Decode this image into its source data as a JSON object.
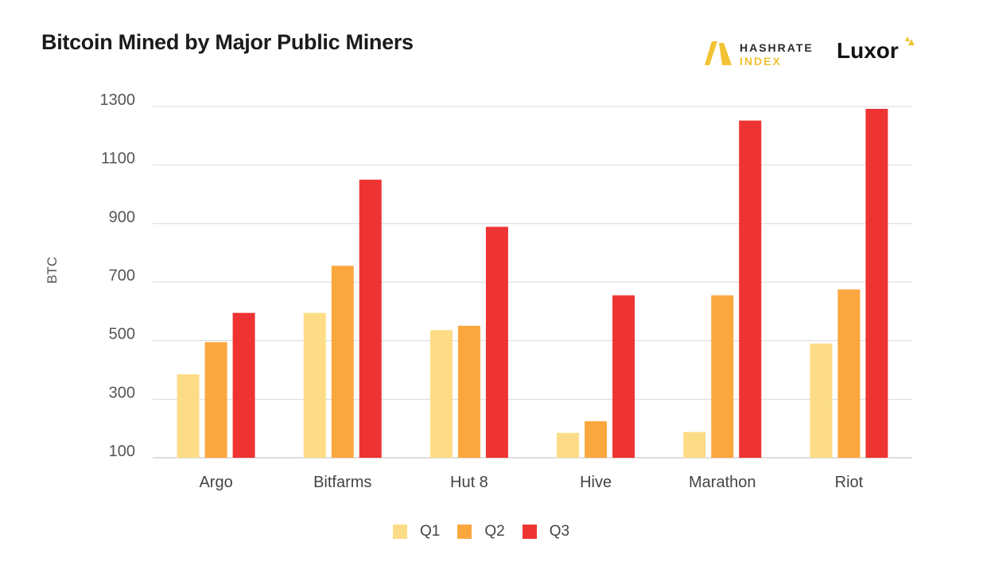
{
  "title": "Bitcoin Mined by Major Public Miners",
  "logos": {
    "hashrate_line1": "HASHRATE",
    "hashrate_line2": "INDEX",
    "luxor": "Luxor"
  },
  "colors": {
    "Q1": "#fddc87",
    "Q2": "#fba73f",
    "Q3": "#ee3433",
    "grid": "#d9d9d9",
    "hashrate_accent": "#f1c232"
  },
  "chart_data": {
    "type": "bar",
    "title": "Bitcoin Mined by Major Public Miners",
    "xlabel": "",
    "ylabel": "BTC",
    "ylim": [
      100,
      1300
    ],
    "yticks": [
      100,
      300,
      500,
      700,
      900,
      1100,
      1300
    ],
    "grid": true,
    "legend_position": "bottom-center",
    "categories": [
      "Argo",
      "Bitfarms",
      "Hut 8",
      "Hive",
      "Marathon",
      "Riot"
    ],
    "series": [
      {
        "name": "Q1",
        "values": [
          385,
          595,
          536,
          185,
          188,
          490
        ]
      },
      {
        "name": "Q2",
        "values": [
          495,
          756,
          551,
          225,
          655,
          675
        ]
      },
      {
        "name": "Q3",
        "values": [
          595,
          1050,
          889,
          655,
          1252,
          1292
        ]
      }
    ]
  }
}
